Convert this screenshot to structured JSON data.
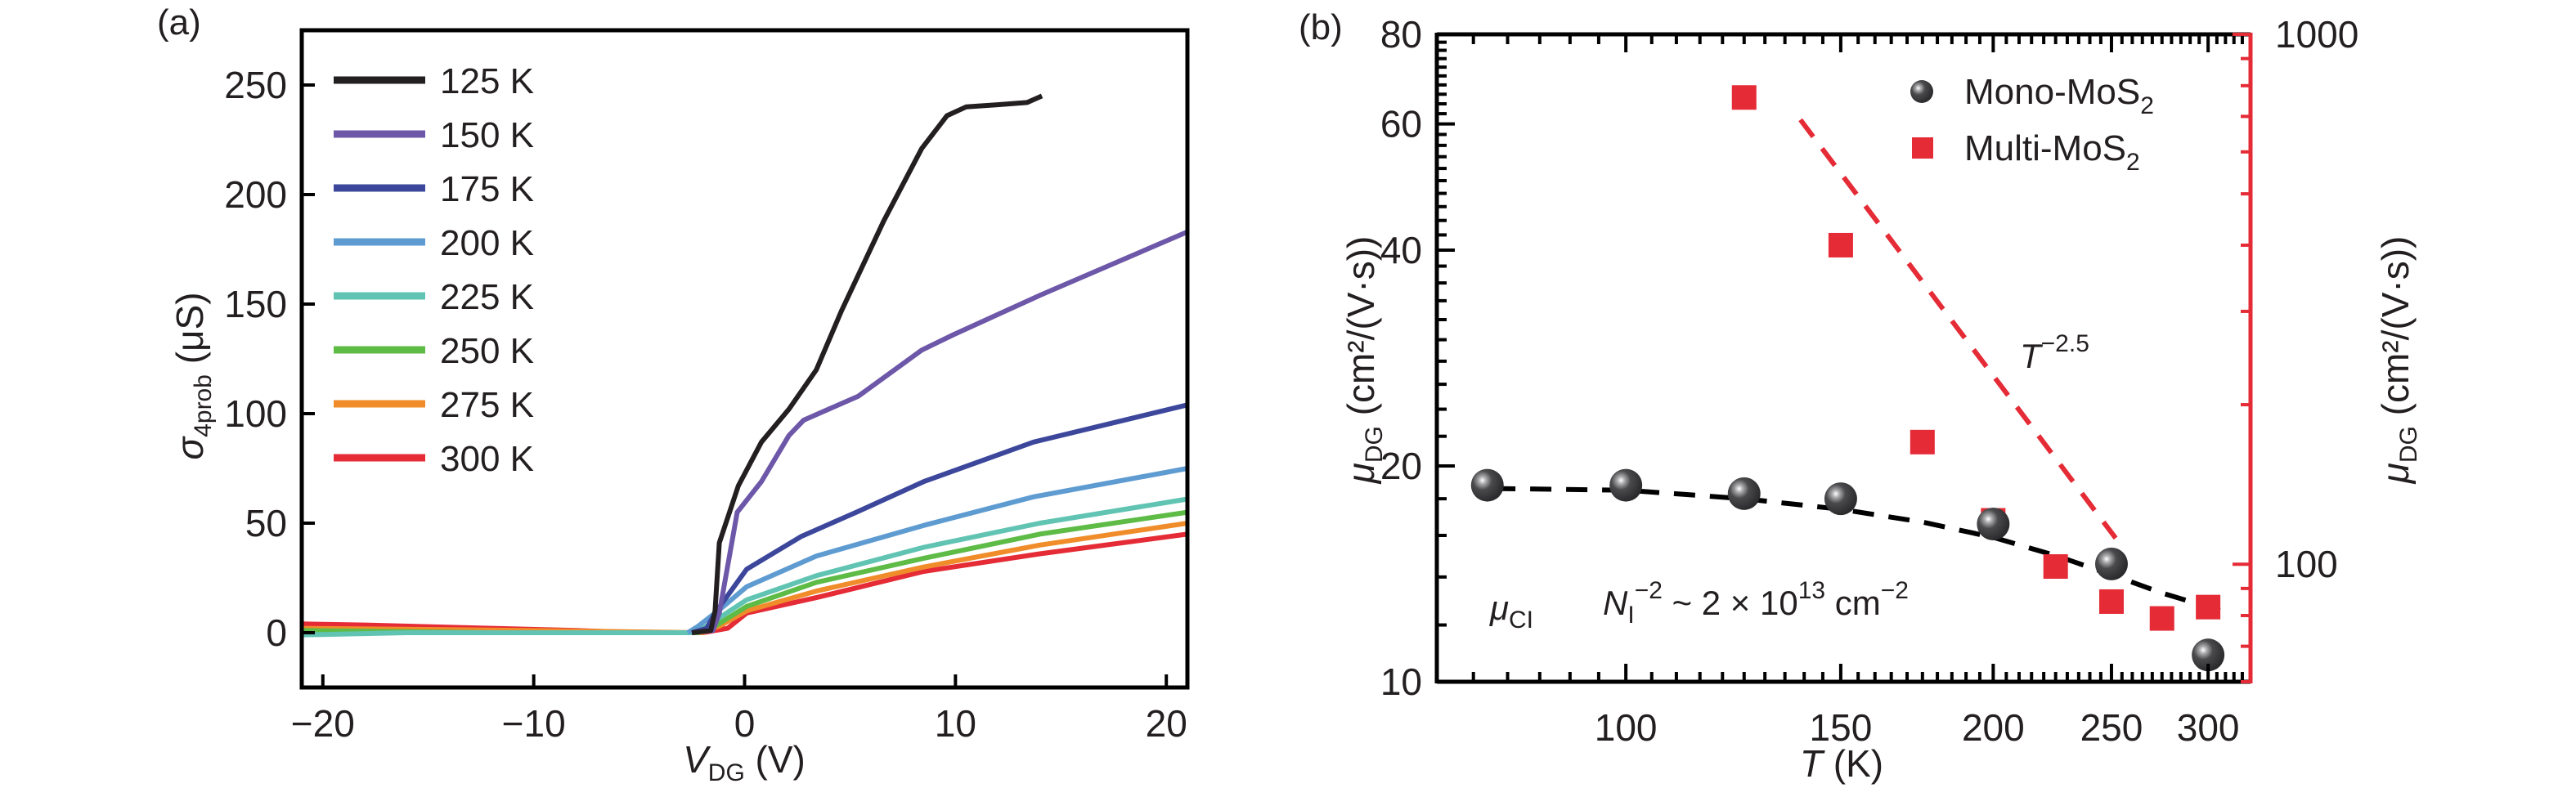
{
  "chart_data": [
    {
      "panel": "(a)",
      "type": "line",
      "xlabel": "V_DG (V)",
      "xlabel_parts": {
        "main": "V",
        "sub": "DG",
        "unit": " (V)"
      },
      "ylabel": "σ_4prob (μS)",
      "ylabel_parts": {
        "main": "σ",
        "sub": "4prob",
        "unit": " (μS)"
      },
      "xlim": [
        -21,
        21
      ],
      "ylim": [
        -25,
        275
      ],
      "xticks": [
        -20,
        -10,
        0,
        10,
        20
      ],
      "xtick_labels": [
        "−20",
        "−10",
        "0",
        "10",
        "20"
      ],
      "yticks": [
        0,
        50,
        100,
        150,
        200,
        250
      ],
      "ytick_labels": [
        "0",
        "50",
        "100",
        "150",
        "200",
        "250"
      ],
      "grid": false,
      "legend_position": "top-left",
      "series": [
        {
          "name": "125 K",
          "color": "#231f20",
          "points": [
            [
              -2.5,
              0
            ],
            [
              -1.6,
              1
            ],
            [
              -1.4,
              10
            ],
            [
              -1.2,
              41
            ],
            [
              -0.3,
              67
            ],
            [
              0.8,
              87
            ],
            [
              2.1,
              102
            ],
            [
              3.4,
              120
            ],
            [
              4.6,
              147
            ],
            [
              6.6,
              188
            ],
            [
              8.4,
              221
            ],
            [
              9.6,
              236
            ],
            [
              10.5,
              240
            ],
            [
              12,
              241
            ],
            [
              13.4,
              242
            ],
            [
              14.1,
              245
            ]
          ]
        },
        {
          "name": "150 K",
          "color": "#6d57a8",
          "points": [
            [
              -2.5,
              0
            ],
            [
              -1.5,
              1
            ],
            [
              -1.2,
              9
            ],
            [
              -0.35,
              55
            ],
            [
              0.8,
              69
            ],
            [
              2.1,
              90
            ],
            [
              2.8,
              97
            ],
            [
              5.4,
              108
            ],
            [
              8.4,
              129
            ],
            [
              9.9,
              136
            ],
            [
              14.0,
              154
            ],
            [
              21,
              183
            ]
          ]
        },
        {
          "name": "175 K",
          "color": "#3c479c",
          "points": [
            [
              -2.5,
              0
            ],
            [
              -1.8,
              2
            ],
            [
              -1.4,
              9
            ],
            [
              0.1,
              29
            ],
            [
              2.7,
              44
            ],
            [
              5.3,
              55
            ],
            [
              8.5,
              69
            ],
            [
              13.7,
              87
            ],
            [
              21,
              104
            ]
          ]
        },
        {
          "name": "200 K",
          "color": "#5e9bd1",
          "points": [
            [
              -2.7,
              0
            ],
            [
              -2.2,
              3
            ],
            [
              -1.0,
              12
            ],
            [
              0.1,
              21
            ],
            [
              3.4,
              35
            ],
            [
              8.5,
              49
            ],
            [
              13.7,
              62
            ],
            [
              21,
              75
            ]
          ]
        },
        {
          "name": "225 K",
          "color": "#61c4b3",
          "points": [
            [
              -21,
              -1
            ],
            [
              -16,
              0
            ],
            [
              -2.5,
              0
            ],
            [
              -1.8,
              3
            ],
            [
              0.1,
              15
            ],
            [
              3.4,
              26
            ],
            [
              8.5,
              39
            ],
            [
              14,
              50
            ],
            [
              21,
              61
            ]
          ]
        },
        {
          "name": "250 K",
          "color": "#5dbb46",
          "points": [
            [
              -21,
              1
            ],
            [
              -12,
              0
            ],
            [
              -2.2,
              0
            ],
            [
              -1.4,
              3
            ],
            [
              0.1,
              12
            ],
            [
              3.4,
              23
            ],
            [
              8.5,
              34
            ],
            [
              14,
              45
            ],
            [
              21,
              55
            ]
          ]
        },
        {
          "name": "275 K",
          "color": "#f08c2a",
          "points": [
            [
              -21,
              2
            ],
            [
              -10,
              1
            ],
            [
              -2.0,
              0
            ],
            [
              -1.2,
              3
            ],
            [
              0.1,
              10
            ],
            [
              3.4,
              19
            ],
            [
              8.5,
              30
            ],
            [
              14,
              40
            ],
            [
              21,
              50
            ]
          ]
        },
        {
          "name": "300 K",
          "color": "#e52b36",
          "points": [
            [
              -21,
              4
            ],
            [
              -18,
              3.5
            ],
            [
              -12,
              2
            ],
            [
              -8,
              1
            ],
            [
              -5,
              0
            ],
            [
              -2,
              0
            ],
            [
              -0.8,
              2
            ],
            [
              0.1,
              9
            ],
            [
              3.4,
              16
            ],
            [
              8.5,
              28
            ],
            [
              14,
              36
            ],
            [
              21,
              45
            ]
          ]
        }
      ]
    },
    {
      "panel": "(b)",
      "type": "scatter",
      "xlabel": "T (K)",
      "xlabel_parts": {
        "main": "T",
        "unit": " (K)"
      },
      "ylabel": "μ_DG (cm²/(V·s))",
      "ylabel_parts": {
        "main": "μ",
        "sub": "DG",
        "unit": " (cm²/(V·s))"
      },
      "y2label": "μ_DG (cm²/(V·s))",
      "xscale": "log",
      "yscale": "log",
      "y2scale": "log",
      "xlim": [
        70,
        325
      ],
      "ylim": [
        10,
        80
      ],
      "y2lim": [
        60,
        1000
      ],
      "xticks": [
        100,
        150,
        200,
        250,
        300
      ],
      "xtick_labels": [
        "100",
        "150",
        "200",
        "250",
        "300"
      ],
      "yticks": [
        10,
        20,
        40,
        60,
        80
      ],
      "ytick_labels": [
        "10",
        "20",
        "40",
        "60",
        "80"
      ],
      "y2ticks": [
        100,
        1000
      ],
      "y2tick_labels": [
        "100",
        "1000"
      ],
      "y2_color": "#e52b36",
      "grid": false,
      "legend_position": "top-right",
      "series": [
        {
          "name": "Mono-MoS",
          "name_sub": "2",
          "marker": "sphere",
          "axis": "left",
          "color": "#3a3a3c",
          "x": [
            77,
            100,
            125,
            150,
            200,
            250,
            300
          ],
          "y": [
            18.8,
            18.8,
            18.3,
            18.0,
            16.6,
            14.6,
            10.9
          ]
        },
        {
          "name": "Multi-MoS",
          "name_sub": "2",
          "marker": "square",
          "axis": "right",
          "color": "#e52b36",
          "x": [
            125,
            150,
            175,
            200,
            225,
            250,
            275,
            300
          ],
          "y": [
            760,
            400,
            170,
            121,
            99,
            85,
            79,
            83
          ]
        }
      ],
      "fits": [
        {
          "name": "mono-fit",
          "axis": "left",
          "style": "dashed",
          "color": "#000000",
          "points": [
            [
              78,
              18.6
            ],
            [
              100,
              18.5
            ],
            [
              125,
              18.0
            ],
            [
              150,
              17.4
            ],
            [
              175,
              16.7
            ],
            [
              200,
              15.9
            ],
            [
              225,
              15.0
            ],
            [
              250,
              14.1
            ],
            [
              275,
              13.3
            ],
            [
              310,
              12.5
            ]
          ]
        },
        {
          "name": "multi-fit",
          "axis": "right",
          "style": "dashed",
          "color": "#e52b36",
          "points": [
            [
              139,
              690
            ],
            [
              252,
              112
            ]
          ]
        }
      ],
      "annotations": {
        "power_law": {
          "main": "T",
          "sup": "−2.5"
        },
        "mu_ci": {
          "main": "μ",
          "sub": "CI"
        },
        "density": {
          "pre": "N",
          "pre_sub": "I",
          "pre_sup": "−2",
          "mid": " ~ 2 × 10",
          "mid_sup": "13",
          "post": " cm",
          "post_sup": "−2"
        }
      }
    }
  ]
}
